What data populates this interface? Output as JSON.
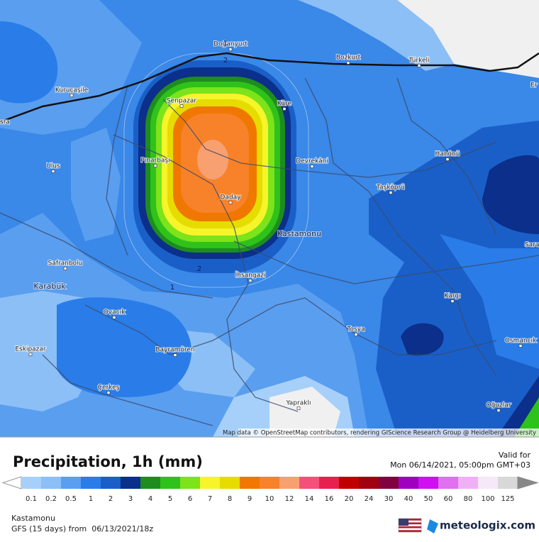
{
  "map": {
    "places": [
      "Doğanyurt",
      "Bozkurt",
      "Türkeli",
      "Kuruçaşile",
      "sra",
      "Şenpazar",
      "Küre",
      "Er",
      "Ulus",
      "Pınarbaşı",
      "Devrekâni",
      "Hanönü",
      "Taşköprü",
      "Daday",
      "Kastamonu",
      "Saraydü",
      "Safranbolu",
      "Karabük",
      "İhsangazi",
      "Kargı",
      "Ovacık",
      "Tosya",
      "Osmancık",
      "Eskipazar",
      "Bayramören",
      "Çerkeş",
      "Yapraklı",
      "Oğuzlar"
    ],
    "contour_labels": [
      "1",
      "2",
      "2",
      "1"
    ],
    "attribution": "Map data © OpenStreetMap contributors, rendering GIScience Research Group @ Heidelberg University"
  },
  "panel": {
    "title": "Precipitation, 1h (mm)",
    "valid_label": "Valid for",
    "valid_time": "Mon 06/14/2021, 05:00pm GMT+03",
    "location": "Kastamonu",
    "model": "GFS (15 days) from  06/13/2021/18z",
    "brand": "meteologix.com"
  },
  "legend": {
    "labels": [
      0.1,
      0.2,
      0.5,
      1,
      2,
      3,
      4,
      5,
      6,
      7,
      8,
      9,
      10,
      12,
      14,
      16,
      20,
      24,
      30,
      40,
      50,
      60,
      80,
      100,
      125
    ],
    "colors": [
      "#a6d0fa",
      "#8cbff5",
      "#5a9ef0",
      "#2a7de8",
      "#1a5fc8",
      "#0b2f8a",
      "#1e8c1e",
      "#2fc21a",
      "#7de31a",
      "#f5f52a",
      "#e6dc00",
      "#f07800",
      "#f8822a",
      "#f8a070",
      "#f5507a",
      "#e82050",
      "#c00000",
      "#a00010",
      "#800040",
      "#a000c0",
      "#d010f0",
      "#e070f0",
      "#f0b0f5",
      "#f5e8f8",
      "#d8d8d8"
    ]
  }
}
